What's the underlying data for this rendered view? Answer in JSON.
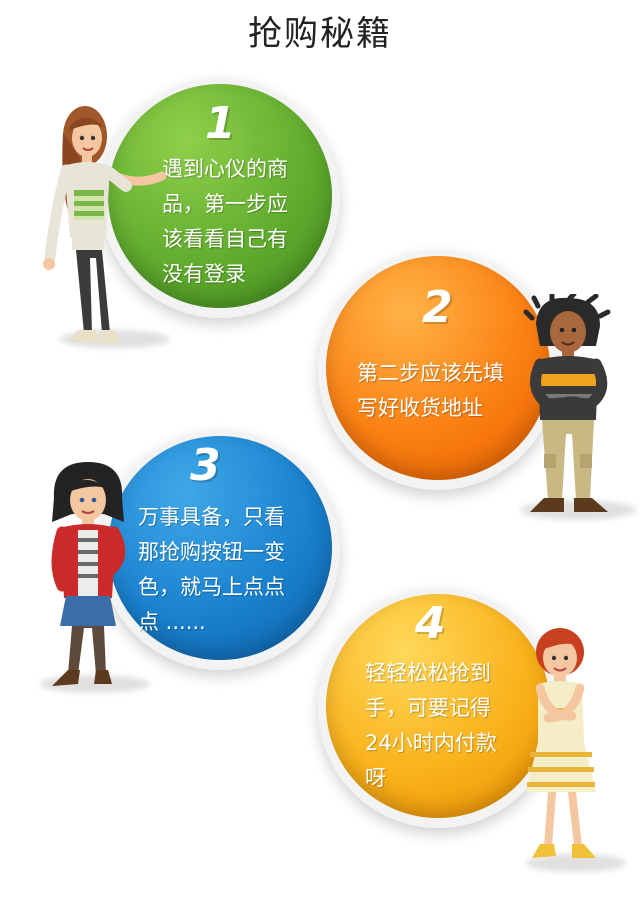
{
  "title": "抢购秘籍",
  "steps": [
    {
      "number": "1",
      "text": "遇到心仪的商品，第一步应该看看自己有没有登录",
      "lines": [
        "遇到心仪的商",
        "品，第一步应",
        "该看看自己有",
        "没有登录"
      ],
      "color": "#62ad2f"
    },
    {
      "number": "2",
      "text": "第二步应该先填写好收货地址",
      "lines": [
        "第二步应该先填",
        "写好收货地址"
      ],
      "color": "#fb8012"
    },
    {
      "number": "3",
      "text": "万事具备，只看那抢购按钮一变色，就马上点点点 ......",
      "lines": [
        "万事具备，只看",
        "那抢购按钮一变",
        "色，就马上点点",
        "点 ......"
      ],
      "color": "#1a82cf"
    },
    {
      "number": "4",
      "text": "轻轻松松抢到手，可要记得24小时内付款呀",
      "lines": [
        "轻轻松松抢到",
        "手，可要记得",
        "24小时内付款",
        "呀"
      ],
      "color": "#f9b21b"
    }
  ]
}
